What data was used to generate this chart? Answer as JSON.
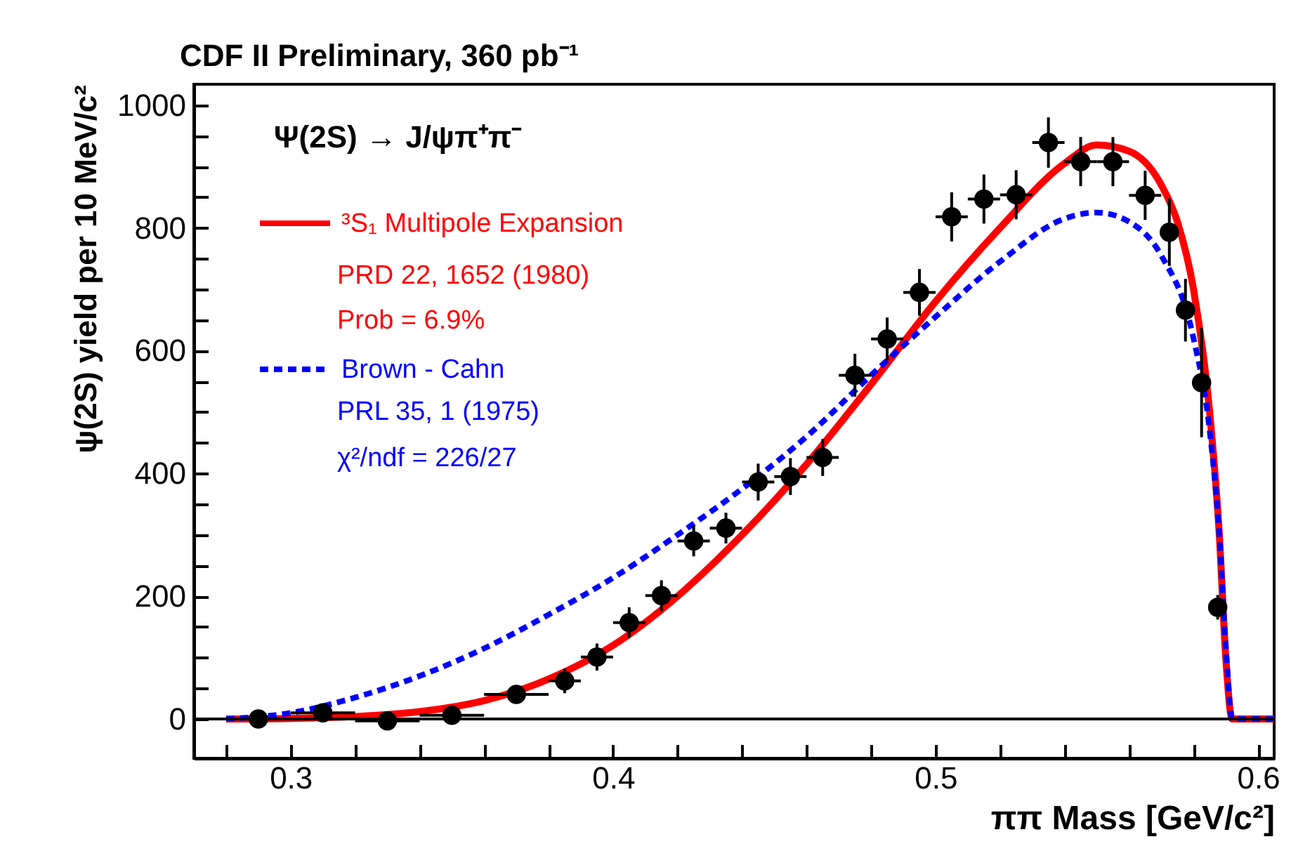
{
  "chart_data": {
    "type": "line",
    "title": "CDF II Preliminary, 360 pb⁻¹",
    "xlabel": "ππ Mass [GeV/c²]",
    "ylabel": "ψ(2S) yield per 10 MeV/c²",
    "annotations": [
      "Ψ(2S) → J/ψπ⁺π⁻",
      "PRD 22, 1652 (1980)",
      "Prob = 6.9%",
      "PRL 35, 1 (1975)",
      "χ²/ndf = 226/27"
    ],
    "xlim": [
      0.27,
      0.605
    ],
    "ylim": [
      -64,
      1034
    ],
    "xticks": [
      {
        "value": 0.28,
        "label": null
      },
      0.3,
      {
        "value": 0.32,
        "label": null
      },
      {
        "value": 0.34,
        "label": null
      },
      {
        "value": 0.36,
        "label": null
      },
      {
        "value": 0.38,
        "label": null
      },
      0.4,
      {
        "value": 0.42,
        "label": null
      },
      {
        "value": 0.44,
        "label": null
      },
      {
        "value": 0.46,
        "label": null
      },
      {
        "value": 0.48,
        "label": null
      },
      0.5,
      {
        "value": 0.52,
        "label": null
      },
      {
        "value": 0.54,
        "label": null
      },
      {
        "value": 0.56,
        "label": null
      },
      {
        "value": 0.58,
        "label": null
      },
      0.6
    ],
    "yticks": [
      0,
      {
        "value": 50,
        "label": null
      },
      {
        "value": 100,
        "label": null
      },
      {
        "value": 150,
        "label": null
      },
      200,
      {
        "value": 250,
        "label": null
      },
      {
        "value": 300,
        "label": null
      },
      {
        "value": 350,
        "label": null
      },
      400,
      {
        "value": 450,
        "label": null
      },
      {
        "value": 500,
        "label": null
      },
      {
        "value": 550,
        "label": null
      },
      600,
      {
        "value": 650,
        "label": null
      },
      {
        "value": 700,
        "label": null
      },
      {
        "value": 750,
        "label": null
      },
      800,
      {
        "value": 850,
        "label": null
      },
      {
        "value": 900,
        "label": null
      },
      {
        "value": 950,
        "label": null
      },
      1000
    ],
    "grid": false,
    "legend": "top left",
    "ref_lines": [
      {
        "axis": "y",
        "value": 0,
        "color": "#000000"
      }
    ],
    "series": [
      {
        "name": "³S₁ Multipole Expansion",
        "color": "#ff0000",
        "line_style": "solid",
        "x": [
          0.28,
          0.3,
          0.32,
          0.34,
          0.36,
          0.38,
          0.4,
          0.42,
          0.44,
          0.46,
          0.48,
          0.5,
          0.52,
          0.54,
          0.55,
          0.56,
          0.57,
          0.575,
          0.58,
          0.585,
          0.588,
          0.59,
          0.592,
          0.605
        ],
        "values": [
          0,
          1,
          4,
          12,
          30,
          65,
          120,
          200,
          300,
          415,
          545,
          680,
          800,
          905,
          935,
          925,
          870,
          810,
          700,
          500,
          300,
          100,
          0,
          0
        ]
      },
      {
        "name": "Brown - Cahn",
        "color": "#0000ff",
        "line_style": "dashed",
        "x": [
          0.28,
          0.3,
          0.32,
          0.34,
          0.36,
          0.38,
          0.4,
          0.42,
          0.44,
          0.46,
          0.48,
          0.5,
          0.52,
          0.54,
          0.55,
          0.56,
          0.57,
          0.58,
          0.585,
          0.588,
          0.59,
          0.592,
          0.605
        ],
        "values": [
          0,
          10,
          35,
          70,
          115,
          170,
          230,
          300,
          375,
          460,
          560,
          655,
          745,
          815,
          825,
          810,
          755,
          620,
          470,
          300,
          120,
          0,
          0
        ]
      },
      {
        "type": "scatter",
        "color": "#000000",
        "marker": "circle",
        "x": [
          0.29,
          0.31,
          0.33,
          0.35,
          0.37,
          0.385,
          0.395,
          0.405,
          0.415,
          0.425,
          0.435,
          0.445,
          0.455,
          0.465,
          0.475,
          0.485,
          0.495,
          0.505,
          0.515,
          0.525,
          0.535,
          0.545,
          0.555,
          0.565,
          0.5725,
          0.5775,
          0.5825,
          0.5875
        ],
        "values": [
          0,
          10,
          -3,
          6,
          40,
          62,
          101,
          157,
          201,
          290,
          311,
          386,
          395,
          426,
          560,
          619,
          695,
          818,
          847,
          854,
          939,
          908,
          908,
          853,
          793,
          666,
          548,
          182
        ],
        "errors": [
          10,
          10,
          8,
          10,
          15,
          20,
          22,
          25,
          25,
          25,
          25,
          30,
          30,
          30,
          35,
          35,
          38,
          40,
          40,
          40,
          41,
          40,
          40,
          40,
          55,
          51,
          89,
          20
        ],
        "xerrors": [
          0.01,
          0.01,
          0.01,
          0.01,
          0.01,
          0.005,
          0.005,
          0.005,
          0.005,
          0.005,
          0.005,
          0.005,
          0.005,
          0.005,
          0.005,
          0.005,
          0.005,
          0.005,
          0.005,
          0.005,
          0.005,
          0.005,
          0.005,
          0.005,
          0.0025,
          0.0025,
          0.0025,
          0.0025
        ]
      }
    ]
  }
}
